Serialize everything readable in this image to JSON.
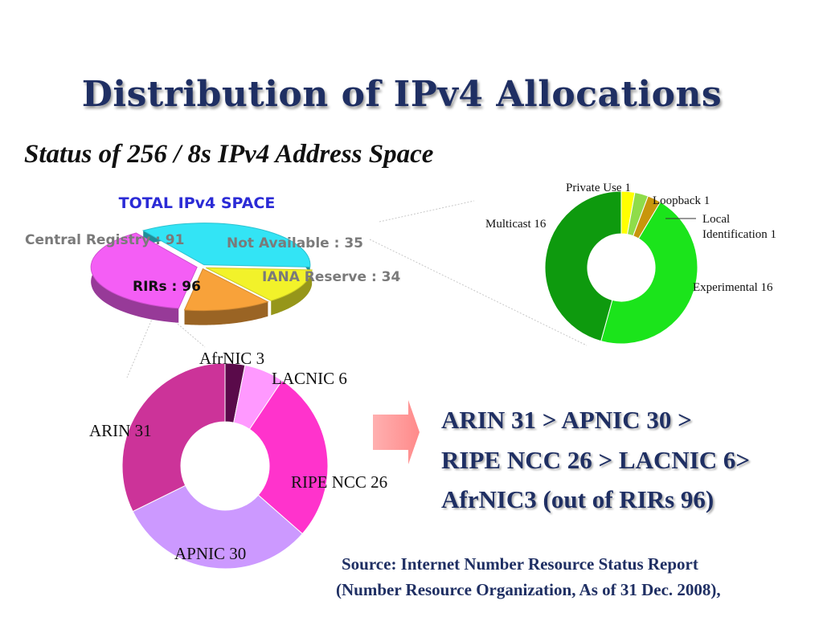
{
  "title": "Distribution of IPv4 Allocations",
  "subtitle": "Status of 256 / 8s IPv4 Address Space",
  "colors": {
    "title": "#1f2f63",
    "cyan": "#33e4f5",
    "yellow": "#f2f22a",
    "orange": "#f8a23a",
    "magenta": "#f45ef5",
    "green_dark": "#0e9a0e",
    "green_light": "#1be41b"
  },
  "chart_data": [
    {
      "type": "pie",
      "title": "TOTAL IPv4 SPACE",
      "slices": [
        {
          "label": "Central Registry : 91",
          "name": "Central Registry",
          "value": 91,
          "color": "#33e4f5"
        },
        {
          "label": "Not  Available : 35",
          "name": "Not Available",
          "value": 35,
          "color": "#f2f22a"
        },
        {
          "label": "IANA  Reserve : 34",
          "name": "IANA Reserve",
          "value": 34,
          "color": "#f8a23a"
        },
        {
          "label": "RIRs : 96",
          "name": "RIRs",
          "value": 96,
          "color": "#f45ef5"
        }
      ]
    },
    {
      "type": "pie",
      "subtype": "donut",
      "slices": [
        {
          "label": "Private Use 1",
          "name": "Private Use",
          "value": 1,
          "color": "#ffff00"
        },
        {
          "label": "Loopback 1",
          "name": "Loopback",
          "value": 1,
          "color": "#8fdc4a"
        },
        {
          "label": "Local Identification 1",
          "label_lines": [
            "Local",
            "Identification 1"
          ],
          "name": "Local Identification",
          "value": 1,
          "color": "#c8960c"
        },
        {
          "label": "Experimental 16",
          "name": "Experimental",
          "value": 16,
          "color": "#1be41b"
        },
        {
          "label": "Multicast 16",
          "name": "Multicast",
          "value": 16,
          "color": "#0e9a0e"
        }
      ]
    },
    {
      "type": "pie",
      "subtype": "donut",
      "slices": [
        {
          "label": "AfrNIC 3",
          "name": "AfrNIC",
          "value": 3,
          "color": "#5a0a4a"
        },
        {
          "label": "LACNIC 6",
          "name": "LACNIC",
          "value": 6,
          "color": "#ff99ff"
        },
        {
          "label": "RIPE NCC 26",
          "name": "RIPE NCC",
          "value": 26,
          "color": "#ff33cc"
        },
        {
          "label": "APNIC 30",
          "name": "APNIC",
          "value": 30,
          "color": "#cc99ff"
        },
        {
          "label": "ARIN 31",
          "name": "ARIN",
          "value": 31,
          "color": "#cc3399"
        }
      ]
    }
  ],
  "summary": {
    "lines": [
      "ARIN 31 > APNIC 30 >",
      "RIPE NCC 26 > LACNIC 6>",
      "AfrNIC3 (out of RIRs 96)"
    ]
  },
  "source": {
    "line1": "Source: Internet Number Resource Status Report",
    "line2": "(Number Resource Organization,  As of 31 Dec. 2008),"
  }
}
